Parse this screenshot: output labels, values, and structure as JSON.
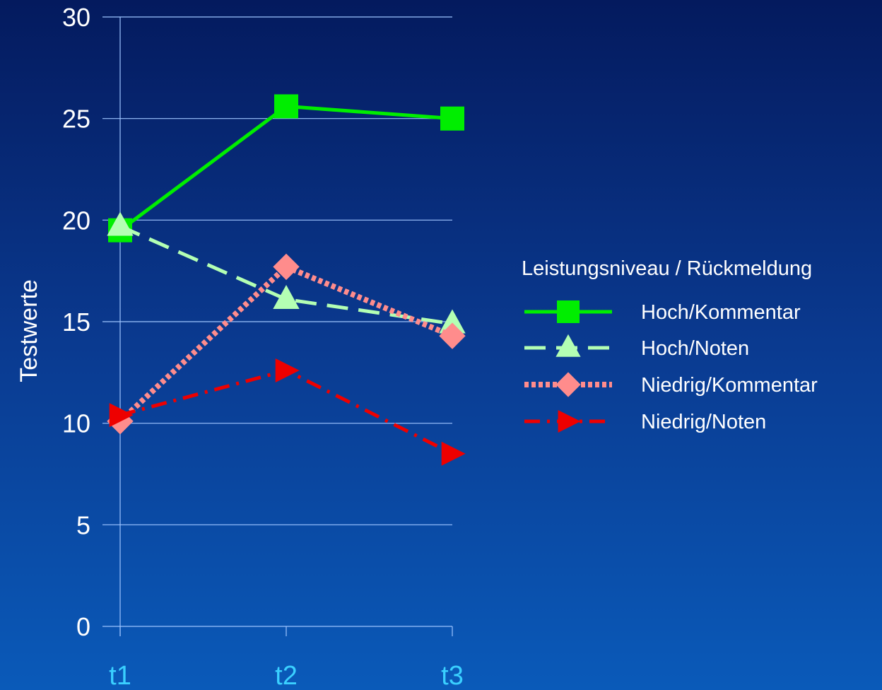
{
  "chart_data": {
    "type": "line",
    "title": "",
    "xlabel": "",
    "ylabel": "Testwerte",
    "categories": [
      "t1",
      "t2",
      "t3"
    ],
    "ylim": [
      0,
      30
    ],
    "yticks": [
      0,
      5,
      10,
      15,
      20,
      25,
      30
    ],
    "grid": "horizontal",
    "legend": {
      "title": "Leistungsniveau / Rückmeldung",
      "placement": "right"
    },
    "series": [
      {
        "name": "Hoch/Kommentar",
        "values": [
          19.5,
          25.6,
          25.0
        ],
        "color": "#00ee00",
        "dash": "solid",
        "marker": "square"
      },
      {
        "name": "Hoch/Noten",
        "values": [
          19.7,
          16.1,
          14.9
        ],
        "color": "#b3ffb3",
        "dash": "dashed",
        "marker": "triangle-up"
      },
      {
        "name": "Niedrig/Kommentar",
        "values": [
          10.1,
          17.7,
          14.3
        ],
        "color": "#ff8c8c",
        "dash": "dotted",
        "marker": "diamond"
      },
      {
        "name": "Niedrig/Noten",
        "values": [
          10.4,
          12.6,
          8.5
        ],
        "color": "#ee0000",
        "dash": "dash-dot",
        "marker": "triangle-right"
      }
    ]
  }
}
